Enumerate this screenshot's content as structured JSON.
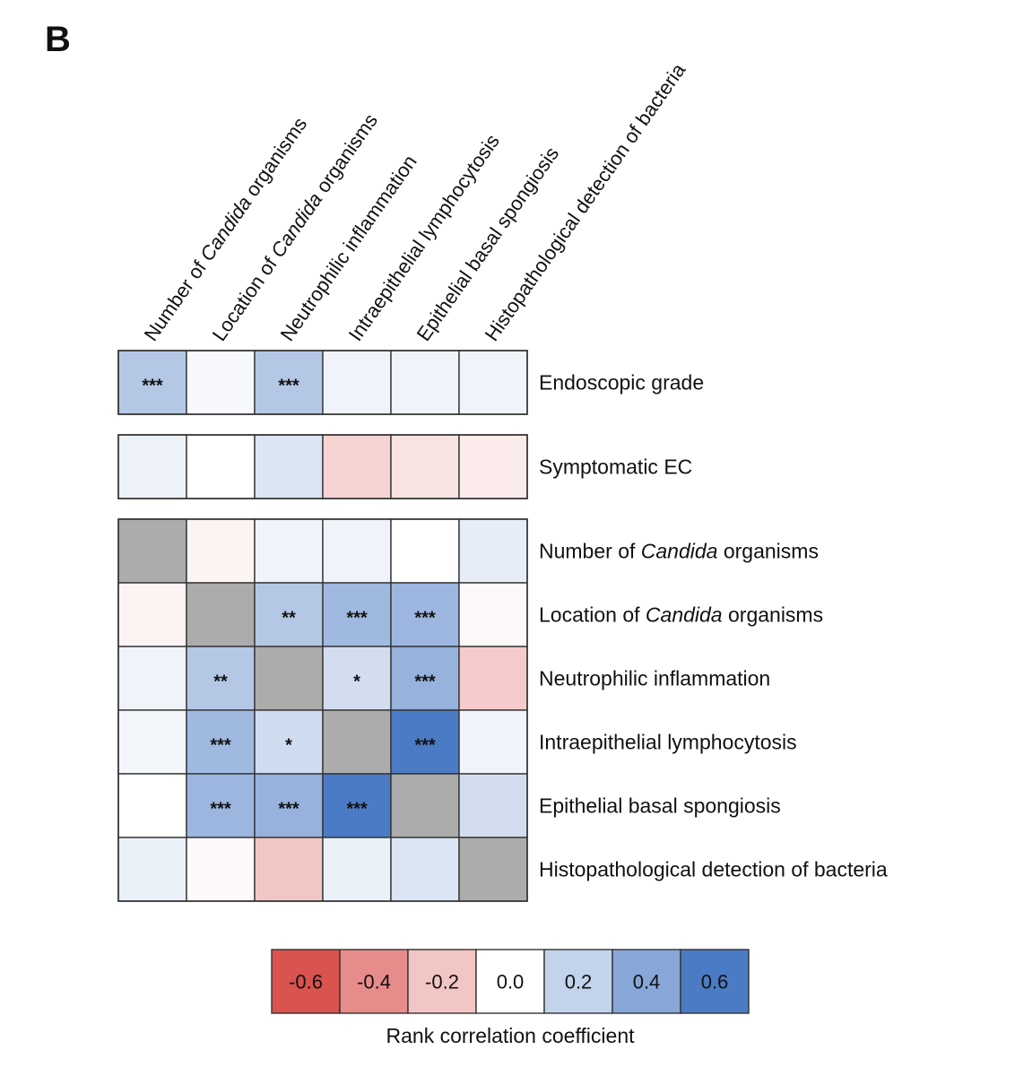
{
  "panel_label": "B",
  "chart_data": {
    "type": "heatmap",
    "title": "",
    "columns": [
      {
        "parts": [
          {
            "text": "Number of "
          },
          {
            "text": "Candida",
            "italic": true
          },
          {
            "text": " organisms"
          }
        ]
      },
      {
        "parts": [
          {
            "text": "Location of "
          },
          {
            "text": "Candida",
            "italic": true
          },
          {
            "text": " organisms"
          }
        ]
      },
      {
        "parts": [
          {
            "text": "Neutrophilic inflammation"
          }
        ]
      },
      {
        "parts": [
          {
            "text": "Intraepithelial lymphocytosis"
          }
        ]
      },
      {
        "parts": [
          {
            "text": "Epithelial basal spongiosis"
          }
        ]
      },
      {
        "parts": [
          {
            "text": "Histopathological detection of bacteria"
          }
        ]
      }
    ],
    "blocks": [
      {
        "rows": [
          {
            "parts": [
              {
                "text": "Endoscopic grade"
              }
            ],
            "values": [
              0.25,
              0.03,
              0.25,
              0.05,
              0.05,
              0.05
            ],
            "sig": [
              "***",
              "",
              "***",
              "",
              "",
              ""
            ]
          }
        ]
      },
      {
        "rows": [
          {
            "parts": [
              {
                "text": "Symptomatic EC"
              }
            ],
            "values": [
              0.06,
              0.0,
              0.12,
              -0.15,
              -0.1,
              -0.07
            ],
            "sig": [
              "",
              "",
              "",
              "",
              "",
              ""
            ]
          }
        ]
      },
      {
        "rows": [
          {
            "parts": [
              {
                "text": "Number of "
              },
              {
                "text": "Candida",
                "italic": true
              },
              {
                "text": " organisms"
              }
            ],
            "values": [
              null,
              -0.04,
              0.05,
              0.05,
              0.0,
              0.08
            ],
            "sig": [
              "",
              "",
              "",
              "",
              "",
              ""
            ]
          },
          {
            "parts": [
              {
                "text": "Location of "
              },
              {
                "text": "Candida",
                "italic": true
              },
              {
                "text": " organisms"
              }
            ],
            "values": [
              -0.04,
              null,
              0.25,
              0.32,
              0.33,
              -0.02
            ],
            "sig": [
              "",
              "",
              "**",
              "***",
              "***",
              ""
            ]
          },
          {
            "parts": [
              {
                "text": "Neutrophilic inflammation"
              }
            ],
            "values": [
              0.05,
              0.25,
              null,
              0.15,
              0.35,
              -0.18
            ],
            "sig": [
              "",
              "**",
              "",
              "*",
              "***",
              ""
            ]
          },
          {
            "parts": [
              {
                "text": "Intraepithelial lymphocytosis"
              }
            ],
            "values": [
              0.04,
              0.32,
              0.16,
              null,
              0.6,
              0.05
            ],
            "sig": [
              "",
              "***",
              "*",
              "",
              "***",
              ""
            ]
          },
          {
            "parts": [
              {
                "text": "Epithelial basal spongiosis"
              }
            ],
            "values": [
              0.0,
              0.33,
              0.35,
              0.6,
              null,
              0.15
            ],
            "sig": [
              "",
              "***",
              "***",
              "***",
              "",
              ""
            ]
          },
          {
            "parts": [
              {
                "text": "Histopathological detection of bacteria"
              }
            ],
            "values": [
              0.07,
              -0.02,
              -0.2,
              0.07,
              0.12,
              null
            ],
            "sig": [
              "",
              "",
              "",
              "",
              "",
              ""
            ]
          }
        ]
      }
    ],
    "diagonal_color": "#acacac",
    "colorscale": {
      "min": -0.6,
      "max": 0.6,
      "negative_color": "#d9534f",
      "zero_color": "#ffffff",
      "positive_color": "#4b7bc4"
    },
    "legend": {
      "title": "Rank correlation coefficient",
      "ticks": [
        "-0.6",
        "-0.4",
        "-0.2",
        "0.0",
        "0.2",
        "0.4",
        "0.6"
      ],
      "tick_values": [
        -0.6,
        -0.4,
        -0.2,
        0.0,
        0.2,
        0.4,
        0.6
      ]
    }
  }
}
